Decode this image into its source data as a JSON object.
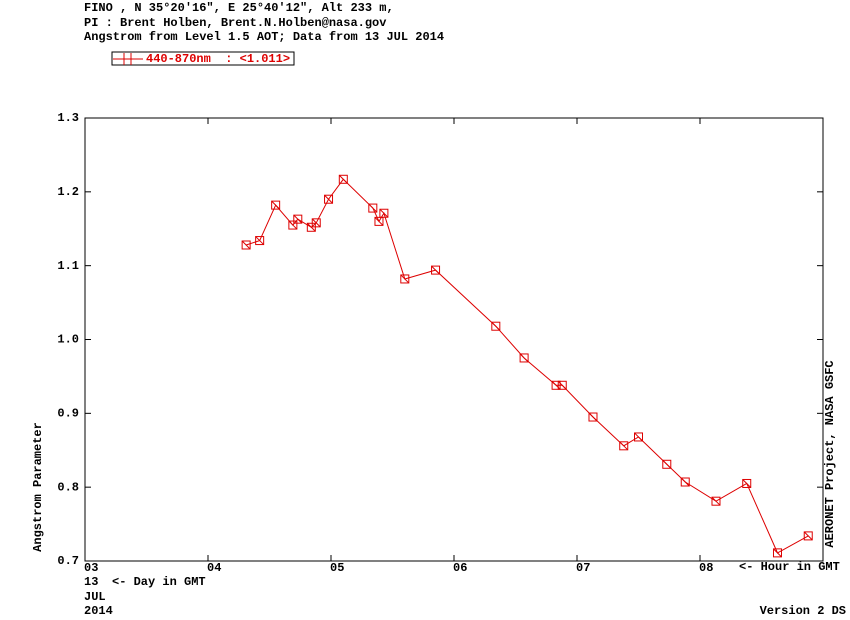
{
  "chart_data": {
    "type": "line",
    "header": [
      "FINO , N 35°20'16\", E 25°40'12\", Alt 233 m,",
      "PI : Brent Holben, Brent.N.Holben@nasa.gov",
      "Angstrom from Level 1.5 AOT; Data from 13 JUL 2014"
    ],
    "y_label": "Angstrom Parameter",
    "x_label": "<- Hour in GMT",
    "day_label": "<- Day in GMT",
    "date": [
      "13",
      "JUL",
      "2014"
    ],
    "side_note": "AERONET Project, NASA GSFC",
    "version": "Version 2 DS",
    "xlim": [
      3,
      9
    ],
    "xticks": [
      {
        "value": 3,
        "label": "03"
      },
      {
        "value": 4,
        "label": "04"
      },
      {
        "value": 5,
        "label": "05"
      },
      {
        "value": 6,
        "label": "06"
      },
      {
        "value": 7,
        "label": "07"
      },
      {
        "value": 8,
        "label": "08"
      }
    ],
    "ylim": [
      0.7,
      1.3
    ],
    "yticks": [
      0.7,
      0.8,
      0.9,
      {
        "value": 1,
        "label": "1.0"
      },
      1.1,
      1.2,
      1.3
    ],
    "series": [
      {
        "name": "440-870nm  : <1.011>",
        "color": "#dd0000",
        "x": [
          4.31,
          4.42,
          4.55,
          4.69,
          4.73,
          4.84,
          4.88,
          4.98,
          5.1,
          5.34,
          5.39,
          5.43,
          5.6,
          5.85,
          6.34,
          6.57,
          6.83,
          6.88,
          7.13,
          7.38,
          7.5,
          7.73,
          7.88,
          8.13,
          8.38,
          8.63,
          8.88
        ],
        "values": [
          1.128,
          1.134,
          1.182,
          1.155,
          1.163,
          1.152,
          1.158,
          1.19,
          1.217,
          1.178,
          1.16,
          1.171,
          1.082,
          1.094,
          1.018,
          0.975,
          0.938,
          0.938,
          0.895,
          0.856,
          0.868,
          0.831,
          0.807,
          0.781,
          0.805,
          0.711,
          0.734
        ]
      }
    ]
  }
}
